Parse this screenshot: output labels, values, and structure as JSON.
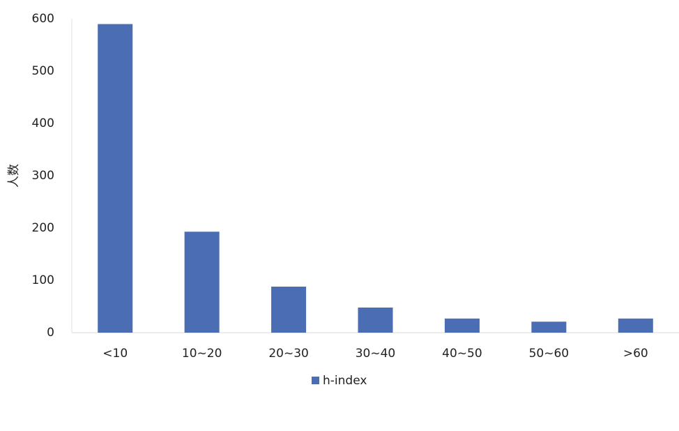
{
  "chart_data": {
    "type": "bar",
    "y_label": "人数",
    "categories": [
      "<10",
      "10~20",
      "20~30",
      "30~40",
      "40~50",
      "50~60",
      ">60"
    ],
    "series": [
      {
        "name": "h-index",
        "color": "#4a6db3",
        "values": [
          590,
          193,
          88,
          48,
          27,
          21,
          27
        ]
      }
    ],
    "ylim": [
      0,
      600
    ],
    "yticks": [
      0,
      100,
      200,
      300,
      400,
      500,
      600
    ],
    "grid": false,
    "legend": "bottom"
  }
}
